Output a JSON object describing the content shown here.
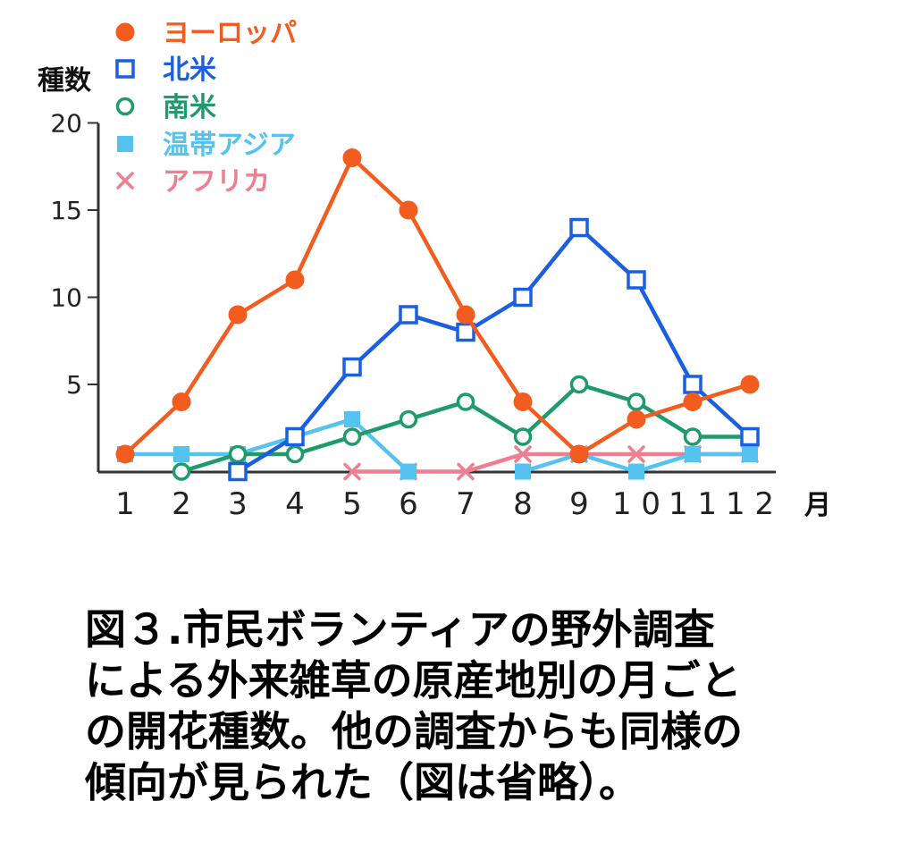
{
  "chart_data": {
    "type": "line",
    "title": "",
    "xlabel": "月",
    "ylabel": "種数",
    "x": [
      1,
      2,
      3,
      4,
      5,
      6,
      7,
      8,
      9,
      10,
      11,
      12
    ],
    "xticks": [
      "1",
      "2",
      "3",
      "4",
      "5",
      "6",
      "7",
      "8",
      "9",
      "1 0",
      "1 1",
      "1 2"
    ],
    "yticks": [
      "20",
      "15",
      "10",
      "5"
    ],
    "ylim": [
      0,
      20
    ],
    "legend_position": "top-left",
    "grid": false,
    "series": [
      {
        "name": "ヨーロッパ",
        "color": "#f25c1e",
        "marker": "filled-circle",
        "values": [
          1,
          4,
          9,
          11,
          18,
          15,
          9,
          4,
          1,
          3,
          4,
          5
        ]
      },
      {
        "name": "北米",
        "color": "#1a5fe0",
        "marker": "open-square",
        "values": [
          null,
          null,
          0,
          2,
          6,
          9,
          8,
          10,
          14,
          11,
          5,
          2
        ]
      },
      {
        "name": "南米",
        "color": "#1f9b6b",
        "marker": "open-circle",
        "values": [
          null,
          0,
          1,
          1,
          2,
          3,
          4,
          2,
          5,
          4,
          2,
          2
        ]
      },
      {
        "name": "温帯アジア",
        "color": "#55c2f0",
        "marker": "filled-square",
        "values": [
          1,
          1,
          1,
          2,
          3,
          0,
          null,
          0,
          1,
          0,
          1,
          1
        ]
      },
      {
        "name": "アフリカ",
        "color": "#ef7f90",
        "marker": "x",
        "values": [
          null,
          null,
          null,
          null,
          0,
          0,
          0,
          1,
          1,
          1,
          1,
          1
        ]
      }
    ]
  },
  "caption": {
    "lines": [
      "図３.市民ボランティアの野外調査",
      "による外来雑草の原産地別の月ごと",
      "の開花種数。他の調査からも同様の",
      "傾向が見られた（図は省略）。"
    ]
  }
}
